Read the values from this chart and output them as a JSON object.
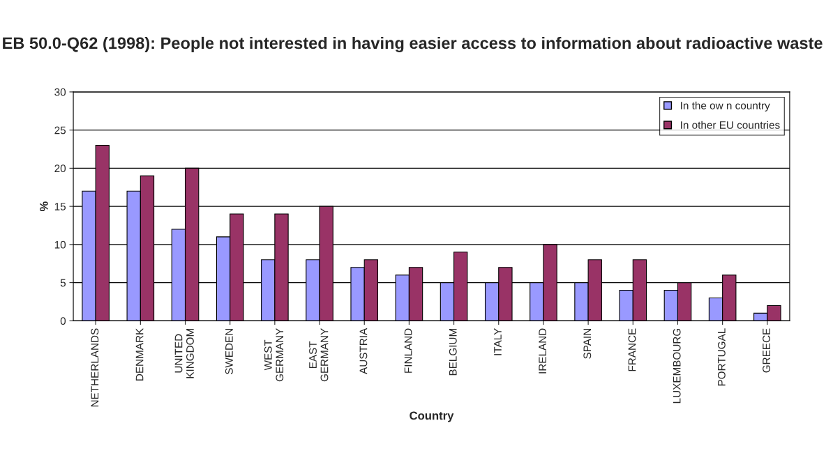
{
  "chart_data": {
    "type": "bar",
    "title": "EB 50.0-Q62 (1998): People not interested in having easier access to information about radioactive waste",
    "xlabel": "Country",
    "ylabel": "%",
    "categories": [
      "NETHERLANDS",
      "DENMARK",
      "UNITED\nKINGDOM",
      "SWEDEN",
      "WEST\nGERMANY",
      "EAST\nGERMANY",
      "AUSTRIA",
      "FINLAND",
      "BELGIUM",
      "ITALY",
      "IRELAND",
      "SPAIN",
      "FRANCE",
      "LUXEMBOURG",
      "PORTUGAL",
      "GREECE"
    ],
    "series": [
      {
        "name": "In the ow n country",
        "color": "#9999ff",
        "values": [
          17,
          17,
          12,
          11,
          8,
          8,
          7,
          6,
          5,
          5,
          5,
          5,
          4,
          4,
          3,
          1
        ]
      },
      {
        "name": "In other EU countries",
        "color": "#993366",
        "values": [
          23,
          19,
          20,
          14,
          14,
          15,
          8,
          7,
          9,
          7,
          10,
          8,
          8,
          5,
          6,
          2
        ]
      }
    ],
    "ylim": [
      0,
      30
    ],
    "yticks": [
      0,
      5,
      10,
      15,
      20,
      25,
      30
    ],
    "grid": "y",
    "legend": "top right"
  }
}
